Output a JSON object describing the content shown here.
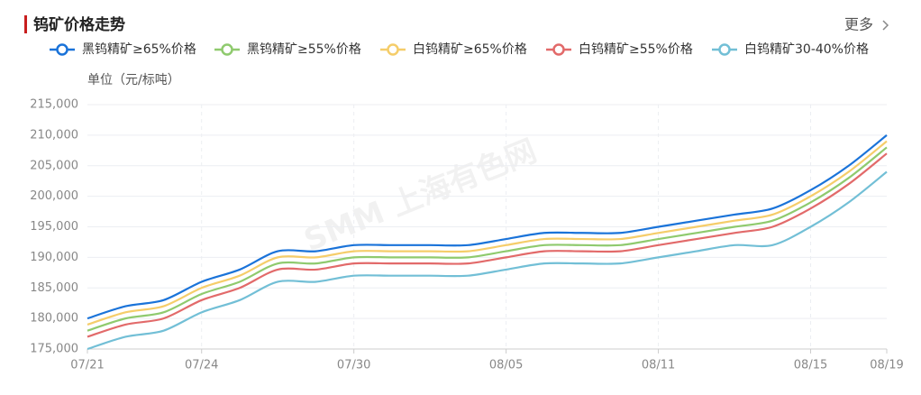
{
  "chart_data": {
    "type": "line",
    "title": "钨矿价格走势",
    "more": "更多",
    "unit_label": "单位（元/标吨）",
    "watermark": "SMM 上海有色网",
    "categories": [
      "07/21",
      null,
      null,
      "07/24",
      null,
      null,
      null,
      "07/30",
      null,
      null,
      null,
      "08/05",
      null,
      null,
      null,
      "08/11",
      null,
      null,
      null,
      "08/15",
      null,
      "08/19"
    ],
    "series": [
      {
        "name": "黑钨精矿≥65%价格",
        "color": "#1a73d9",
        "values": [
          180000,
          182000,
          183000,
          186000,
          188000,
          191000,
          191000,
          192000,
          192000,
          192000,
          192000,
          193000,
          194000,
          194000,
          194000,
          195000,
          196000,
          197000,
          198000,
          201000,
          205000,
          210000
        ]
      },
      {
        "name": "黑钨精矿≥55%价格",
        "color": "#8fca6e",
        "values": [
          178000,
          180000,
          181000,
          184000,
          186000,
          189000,
          189000,
          190000,
          190000,
          190000,
          190000,
          191000,
          192000,
          192000,
          192000,
          193000,
          194000,
          195000,
          196000,
          199000,
          203000,
          208000
        ]
      },
      {
        "name": "白钨精矿≥65%价格",
        "color": "#f5cd6a",
        "values": [
          179000,
          181000,
          182000,
          185000,
          187000,
          190000,
          190000,
          191000,
          191000,
          191000,
          191000,
          192000,
          193000,
          193000,
          193000,
          194000,
          195000,
          196000,
          197000,
          200000,
          204000,
          209000
        ]
      },
      {
        "name": "白钨精矿≥55%价格",
        "color": "#e26a6a",
        "values": [
          177000,
          179000,
          180000,
          183000,
          185000,
          188000,
          188000,
          189000,
          189000,
          189000,
          189000,
          190000,
          191000,
          191000,
          191000,
          192000,
          193000,
          194000,
          195000,
          198000,
          202000,
          207000
        ]
      },
      {
        "name": "白钨精矿30-40%价格",
        "color": "#72bfd6",
        "values": [
          175000,
          177000,
          178000,
          181000,
          183000,
          186000,
          186000,
          187000,
          187000,
          187000,
          187000,
          188000,
          189000,
          189000,
          189000,
          190000,
          191000,
          192000,
          192000,
          195000,
          199000,
          204000
        ]
      }
    ],
    "ylim": [
      175000,
      215000
    ],
    "yticks": [
      {
        "value": 175000,
        "label": "175,000"
      },
      {
        "value": 180000,
        "label": "180,000"
      },
      {
        "value": 185000,
        "label": "185,000"
      },
      {
        "value": 190000,
        "label": "190,000"
      },
      {
        "value": 195000,
        "label": "195,000"
      },
      {
        "value": 200000,
        "label": "200,000"
      },
      {
        "value": 205000,
        "label": "205,000"
      },
      {
        "value": 210000,
        "label": "210,000"
      },
      {
        "value": 215000,
        "label": "215,000"
      }
    ],
    "grid": true
  }
}
